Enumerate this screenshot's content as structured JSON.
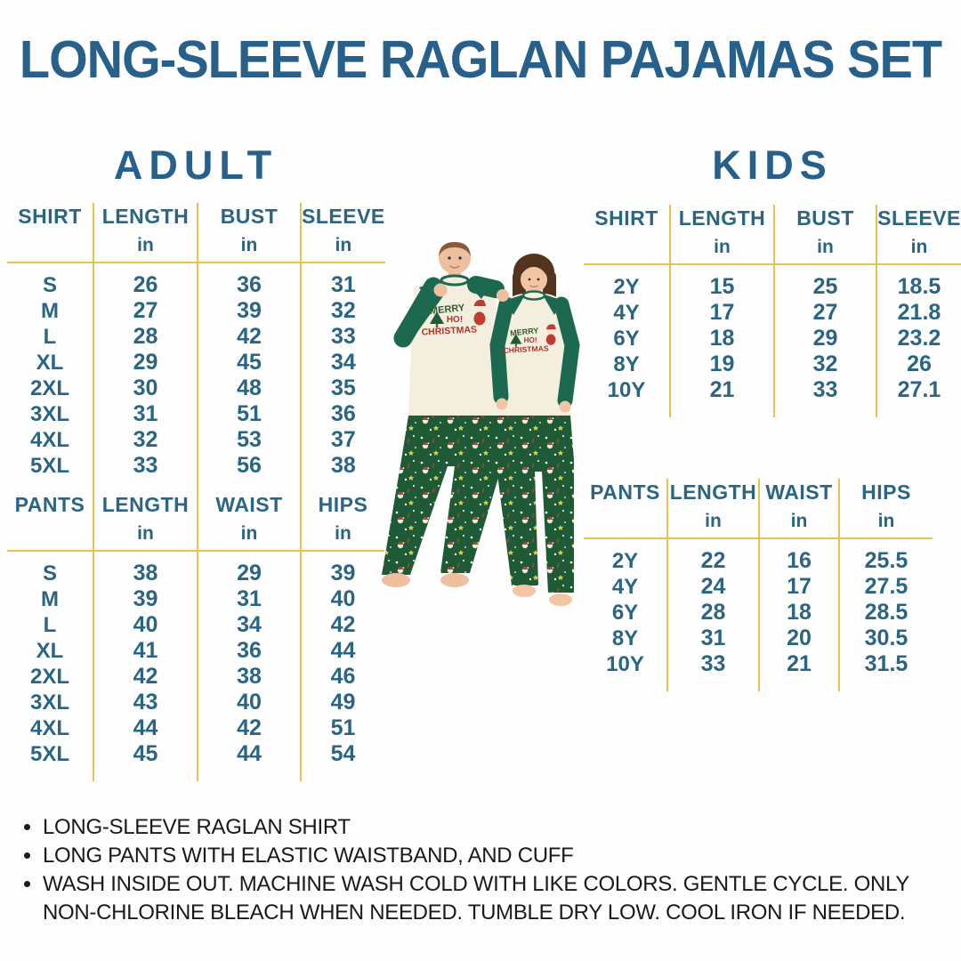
{
  "title": "LONG-SLEEVE RAGLAN PAJAMAS SET",
  "adult": {
    "heading": "ADULT",
    "shirt": {
      "headers": [
        "SHIRT",
        "LENGTH",
        "BUST",
        "SLEEVE"
      ],
      "units": [
        "",
        "in",
        "in",
        "in"
      ],
      "rows": [
        [
          "S",
          "26",
          "36",
          "31"
        ],
        [
          "M",
          "27",
          "39",
          "32"
        ],
        [
          "L",
          "28",
          "42",
          "33"
        ],
        [
          "XL",
          "29",
          "45",
          "34"
        ],
        [
          "2XL",
          "30",
          "48",
          "35"
        ],
        [
          "3XL",
          "31",
          "51",
          "36"
        ],
        [
          "4XL",
          "32",
          "53",
          "37"
        ],
        [
          "5XL",
          "33",
          "56",
          "38"
        ]
      ]
    },
    "pants": {
      "headers": [
        "PANTS",
        "LENGTH",
        "WAIST",
        "HIPS"
      ],
      "units": [
        "",
        "in",
        "in",
        "in"
      ],
      "rows": [
        [
          "S",
          "38",
          "29",
          "39"
        ],
        [
          "M",
          "39",
          "31",
          "40"
        ],
        [
          "L",
          "40",
          "34",
          "42"
        ],
        [
          "XL",
          "41",
          "36",
          "44"
        ],
        [
          "2XL",
          "42",
          "38",
          "46"
        ],
        [
          "3XL",
          "43",
          "40",
          "49"
        ],
        [
          "4XL",
          "44",
          "42",
          "51"
        ],
        [
          "5XL",
          "45",
          "44",
          "54"
        ]
      ]
    }
  },
  "kids": {
    "heading": "KIDS",
    "shirt": {
      "headers": [
        "SHIRT",
        "LENGTH",
        "BUST",
        "SLEEVE"
      ],
      "units": [
        "",
        "in",
        "in",
        "in"
      ],
      "rows": [
        [
          "2Y",
          "15",
          "25",
          "18.5"
        ],
        [
          "4Y",
          "17",
          "27",
          "21.8"
        ],
        [
          "6Y",
          "18",
          "29",
          "23.2"
        ],
        [
          "8Y",
          "19",
          "32",
          "26"
        ],
        [
          "10Y",
          "21",
          "33",
          "27.1"
        ]
      ]
    },
    "pants": {
      "headers": [
        "PANTS",
        "LENGTH",
        "WAIST",
        "HIPS"
      ],
      "units": [
        "",
        "in",
        "in",
        "in"
      ],
      "rows": [
        [
          "2Y",
          "22",
          "16",
          "25.5"
        ],
        [
          "4Y",
          "24",
          "17",
          "27.5"
        ],
        [
          "6Y",
          "28",
          "18",
          "28.5"
        ],
        [
          "8Y",
          "31",
          "20",
          "30.5"
        ],
        [
          "10Y",
          "33",
          "21",
          "31.5"
        ]
      ]
    }
  },
  "photo": {
    "alt": "Man and woman wearing matching green and cream Christmas raglan pajamas",
    "shirt_graphic": [
      "MERRY",
      "HO!",
      "CHRISTMAS"
    ]
  },
  "notes": [
    "LONG-SLEEVE RAGLAN SHIRT",
    "LONG PANTS WITH ELASTIC WAISTBAND, AND CUFF",
    "WASH INSIDE OUT. MACHINE WASH COLD WITH LIKE COLORS. GENTLE CYCLE. ONLY NON-CHLORINE BLEACH WHEN NEEDED. TUMBLE DRY LOW. COOL IRON IF NEEDED."
  ],
  "colors": {
    "accent_blue": "#27618b",
    "line_gold": "#e9c052",
    "sleeve_green": "#1d6950",
    "pants_green": "#1e5a35",
    "shirt_cream": "#f4eedf"
  }
}
